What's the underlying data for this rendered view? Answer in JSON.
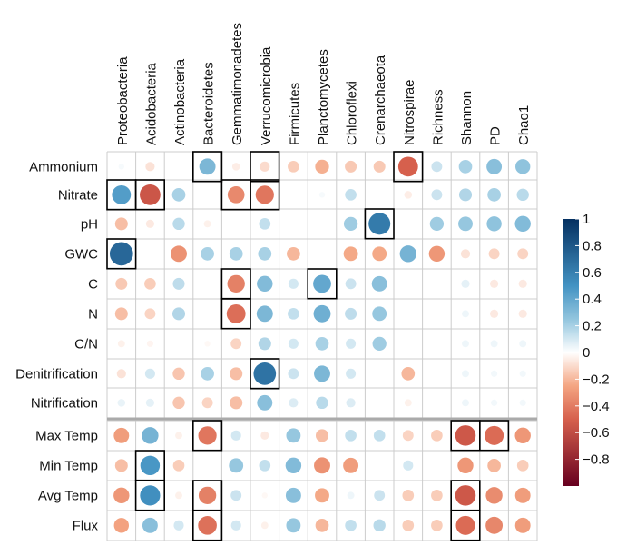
{
  "chart_data": {
    "type": "heatmap",
    "title": "",
    "columns": [
      "Proteobacteria",
      "Acidobacteria",
      "Actinobacteria",
      "Bacteroidetes",
      "Gemmatimonadetes",
      "Verrucomicrobia",
      "Firmicutes",
      "Planctomycetes",
      "Chloroflexi",
      "Crenarchaeota",
      "Nitrospirae",
      "Richness",
      "Shannon",
      "PD",
      "Chao1"
    ],
    "rows": [
      "Ammonium",
      "Nitrate",
      "pH",
      "GWC",
      "C",
      "N",
      "C/N",
      "Denitrification",
      "Nitrification",
      "Max Temp",
      "Min Temp",
      "Avg Temp",
      "Flux"
    ],
    "values": [
      [
        0.02,
        -0.08,
        0.0,
        0.32,
        -0.05,
        -0.1,
        -0.14,
        -0.22,
        -0.15,
        -0.15,
        -0.5,
        0.12,
        0.2,
        0.28,
        0.26
      ],
      [
        0.45,
        -0.55,
        0.2,
        0.0,
        -0.35,
        -0.42,
        0.0,
        0.02,
        0.14,
        0.0,
        -0.05,
        0.12,
        0.18,
        0.2,
        0.16
      ],
      [
        -0.18,
        -0.06,
        0.16,
        -0.04,
        0.0,
        0.14,
        0.0,
        0.0,
        0.22,
        0.62,
        0.0,
        0.22,
        0.24,
        0.26,
        0.3
      ],
      [
        0.72,
        0.0,
        -0.32,
        0.2,
        0.2,
        0.2,
        -0.2,
        0.0,
        -0.24,
        -0.24,
        0.34,
        -0.3,
        -0.08,
        -0.12,
        -0.12
      ],
      [
        -0.15,
        -0.14,
        0.15,
        0.0,
        -0.38,
        0.3,
        0.1,
        0.4,
        0.12,
        0.28,
        0.0,
        0.0,
        0.06,
        -0.06,
        -0.06
      ],
      [
        -0.18,
        -0.12,
        0.18,
        0.0,
        -0.45,
        0.32,
        0.14,
        0.36,
        0.15,
        0.24,
        0.0,
        0.0,
        0.04,
        -0.06,
        -0.06
      ],
      [
        -0.04,
        -0.03,
        0.0,
        -0.02,
        -0.12,
        0.18,
        0.1,
        0.2,
        0.1,
        0.22,
        0.0,
        0.0,
        0.04,
        0.04,
        0.04
      ],
      [
        -0.08,
        0.1,
        -0.16,
        0.2,
        -0.18,
        0.66,
        0.12,
        0.32,
        0.1,
        0.0,
        -0.2,
        0.0,
        0.04,
        0.03,
        0.03
      ],
      [
        0.05,
        0.06,
        -0.16,
        -0.12,
        -0.18,
        0.28,
        0.08,
        0.16,
        0.08,
        0.0,
        -0.04,
        0.0,
        0.04,
        0.03,
        0.03
      ],
      [
        -0.28,
        0.34,
        -0.04,
        -0.42,
        0.1,
        -0.06,
        0.24,
        -0.18,
        0.14,
        0.14,
        -0.12,
        -0.14,
        -0.54,
        -0.46,
        -0.3
      ],
      [
        -0.18,
        0.48,
        -0.14,
        0.0,
        0.24,
        0.14,
        0.3,
        -0.32,
        -0.28,
        0.0,
        0.1,
        0.0,
        -0.3,
        -0.2,
        -0.14
      ],
      [
        -0.3,
        0.52,
        -0.04,
        -0.38,
        0.12,
        -0.02,
        0.28,
        -0.24,
        0.04,
        0.12,
        -0.14,
        -0.14,
        -0.54,
        -0.34,
        -0.28
      ],
      [
        -0.26,
        0.28,
        0.1,
        -0.44,
        0.1,
        -0.04,
        0.24,
        -0.2,
        0.14,
        0.16,
        -0.14,
        -0.14,
        -0.46,
        -0.36,
        -0.28
      ]
    ],
    "highlighted": [
      [
        0,
        3
      ],
      [
        0,
        5
      ],
      [
        0,
        10
      ],
      [
        1,
        0
      ],
      [
        1,
        1
      ],
      [
        1,
        4
      ],
      [
        1,
        5
      ],
      [
        2,
        9
      ],
      [
        3,
        0
      ],
      [
        4,
        4
      ],
      [
        4,
        7
      ],
      [
        5,
        4
      ],
      [
        7,
        5
      ],
      [
        9,
        3
      ],
      [
        9,
        12
      ],
      [
        9,
        13
      ],
      [
        10,
        1
      ],
      [
        11,
        1
      ],
      [
        11,
        3
      ],
      [
        11,
        12
      ],
      [
        12,
        3
      ],
      [
        12,
        12
      ]
    ],
    "row_groups": [
      [
        "Ammonium",
        "Nitrate",
        "pH",
        "GWC",
        "C",
        "N",
        "C/N",
        "Denitrification",
        "Nitrification"
      ],
      [
        "Max Temp",
        "Min Temp",
        "Avg Temp",
        "Flux"
      ]
    ],
    "colorbar": {
      "range": [
        -1,
        1
      ],
      "ticks": [
        1,
        0.8,
        0.6,
        0.4,
        0.2,
        0,
        -0.2,
        -0.4,
        -0.6,
        -0.8
      ],
      "tick_labels": [
        "1",
        "0.8",
        "0.6",
        "0.4",
        "0.2",
        "0",
        "−0.2",
        "−0.4",
        "−0.6",
        "−0.8"
      ],
      "colors": {
        "negative_end": "#67001f",
        "mid_negative": "#f4a582",
        "zero": "#ffffff",
        "mid_positive": "#92c5de",
        "positive_end": "#053061"
      }
    },
    "grid_color": "#cccccc",
    "highlight_color": "#000000"
  }
}
